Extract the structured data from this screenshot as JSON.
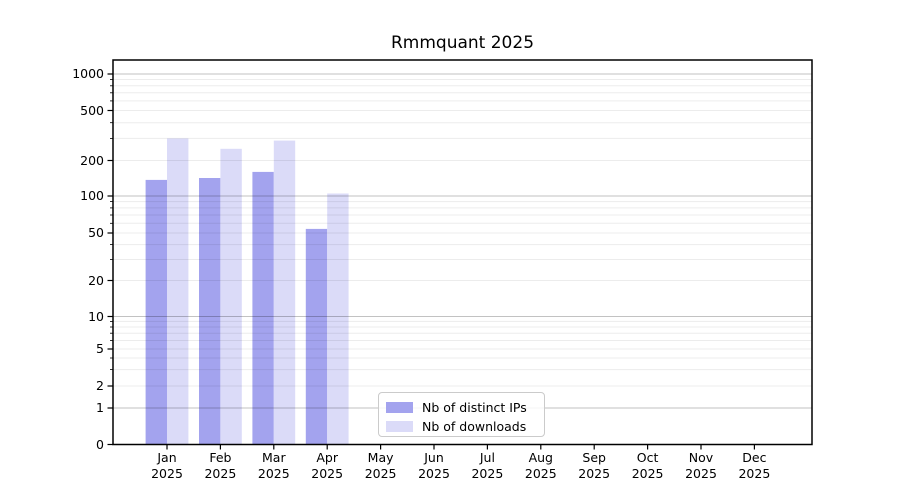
{
  "chart_data": {
    "type": "bar",
    "title": "Rmmquant 2025",
    "categories": [
      "Jan",
      "Feb",
      "Mar",
      "Apr",
      "May",
      "Jun",
      "Jul",
      "Aug",
      "Sep",
      "Oct",
      "Nov",
      "Dec"
    ],
    "year_label": "2025",
    "series": [
      {
        "name": "Nb of distinct IPs",
        "color": "#a3a3ee",
        "values": [
          137,
          142,
          160,
          54,
          null,
          null,
          null,
          null,
          null,
          null,
          null,
          null
        ]
      },
      {
        "name": "Nb of downloads",
        "color": "#dbdbf8",
        "values": [
          300,
          248,
          288,
          105,
          null,
          null,
          null,
          null,
          null,
          null,
          null,
          null
        ]
      }
    ],
    "xlabel": "",
    "ylabel": "",
    "yscale": "symlog",
    "yticks": [
      0,
      1,
      2,
      5,
      10,
      20,
      50,
      100,
      200,
      500,
      1000
    ],
    "ylim": [
      0,
      1300
    ],
    "grid": true,
    "legend_position": "lower-center",
    "colors": {
      "major_grid": "rgba(0,0,0,0.24)",
      "minor_grid": "rgba(0,0,0,0.075)",
      "axis": "#000000",
      "background": "#ffffff"
    }
  }
}
